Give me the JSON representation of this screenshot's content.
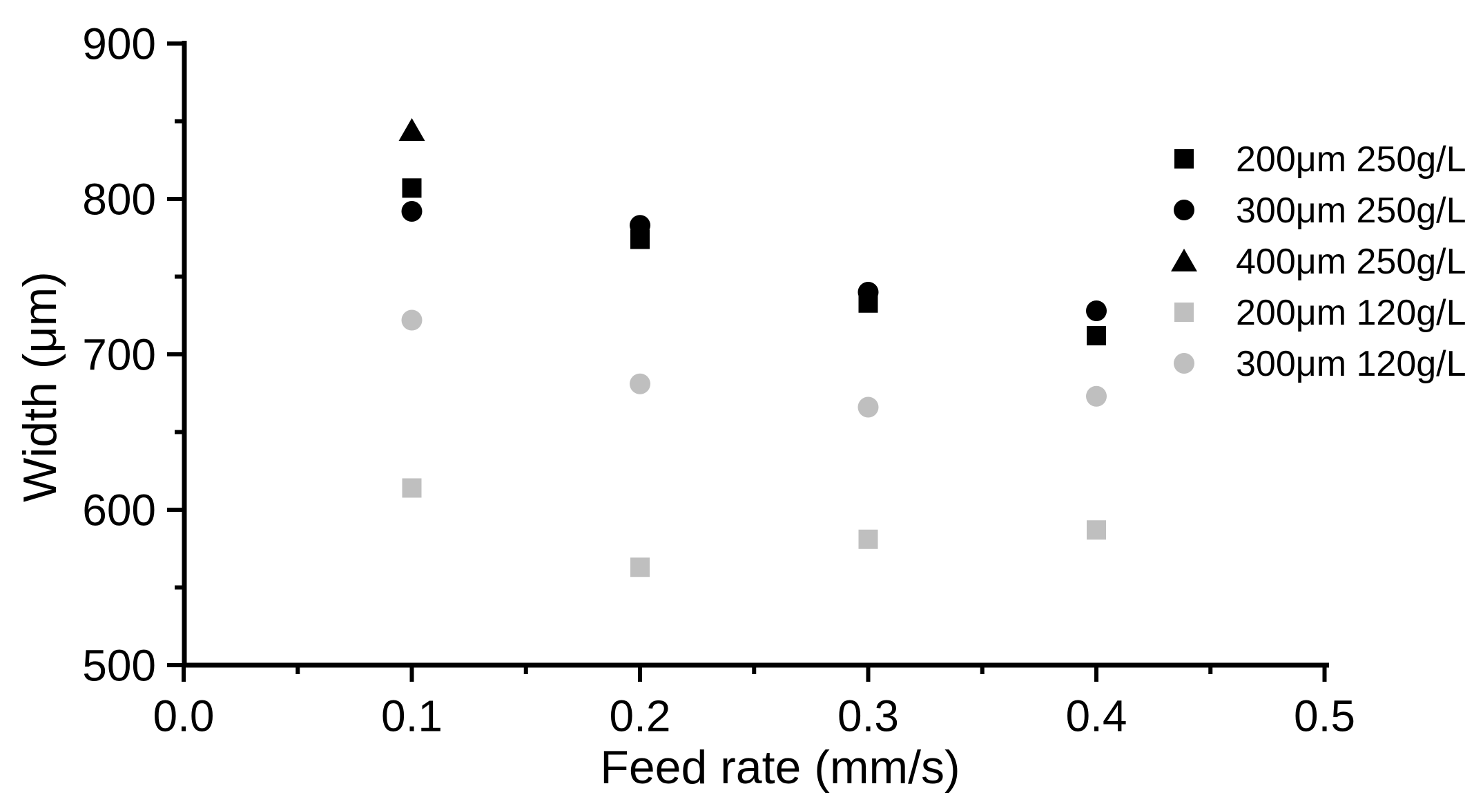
{
  "figure": {
    "background": "#ffffff"
  },
  "chart_data": {
    "type": "scatter",
    "title": "",
    "xlabel": "Feed rate (mm/s)",
    "ylabel": "Width (μm)",
    "xlim": [
      0.0,
      0.5
    ],
    "ylim": [
      500,
      900
    ],
    "grid": false,
    "legend_position": "right",
    "x_major_ticks": [
      0.0,
      0.1,
      0.2,
      0.3,
      0.4,
      0.5
    ],
    "x_tick_labels": [
      "0.0",
      "0.1",
      "0.2",
      "0.3",
      "0.4",
      "0.5"
    ],
    "x_minor_ticks": [
      0.05,
      0.15,
      0.25,
      0.35,
      0.45
    ],
    "y_major_ticks": [
      500,
      600,
      700,
      800,
      900
    ],
    "y_tick_labels": [
      "500",
      "600",
      "700",
      "800",
      "900"
    ],
    "y_minor_ticks": [
      550,
      650,
      750,
      850
    ],
    "colors": {
      "series_black": "#000000",
      "series_gray": "#bfbfbf",
      "axis": "#000000"
    },
    "series": [
      {
        "name": "200μm 250g/L",
        "marker": "square",
        "color": "#000000",
        "points": [
          [
            0.1,
            807
          ],
          [
            0.2,
            774
          ],
          [
            0.3,
            733
          ],
          [
            0.4,
            712
          ]
        ]
      },
      {
        "name": "300μm 250g/L",
        "marker": "circle",
        "color": "#000000",
        "points": [
          [
            0.1,
            792
          ],
          [
            0.2,
            783
          ],
          [
            0.3,
            740
          ],
          [
            0.4,
            728
          ]
        ]
      },
      {
        "name": "400μm 250g/L",
        "marker": "triangle",
        "color": "#000000",
        "points": [
          [
            0.1,
            844
          ]
        ]
      },
      {
        "name": "200μm 120g/L",
        "marker": "square",
        "color": "#bfbfbf",
        "points": [
          [
            0.1,
            614
          ],
          [
            0.2,
            563
          ],
          [
            0.3,
            581
          ],
          [
            0.4,
            587
          ]
        ]
      },
      {
        "name": "300μm 120g/L",
        "marker": "circle",
        "color": "#bfbfbf",
        "points": [
          [
            0.1,
            722
          ],
          [
            0.2,
            681
          ],
          [
            0.3,
            666
          ],
          [
            0.4,
            673
          ]
        ]
      }
    ]
  }
}
